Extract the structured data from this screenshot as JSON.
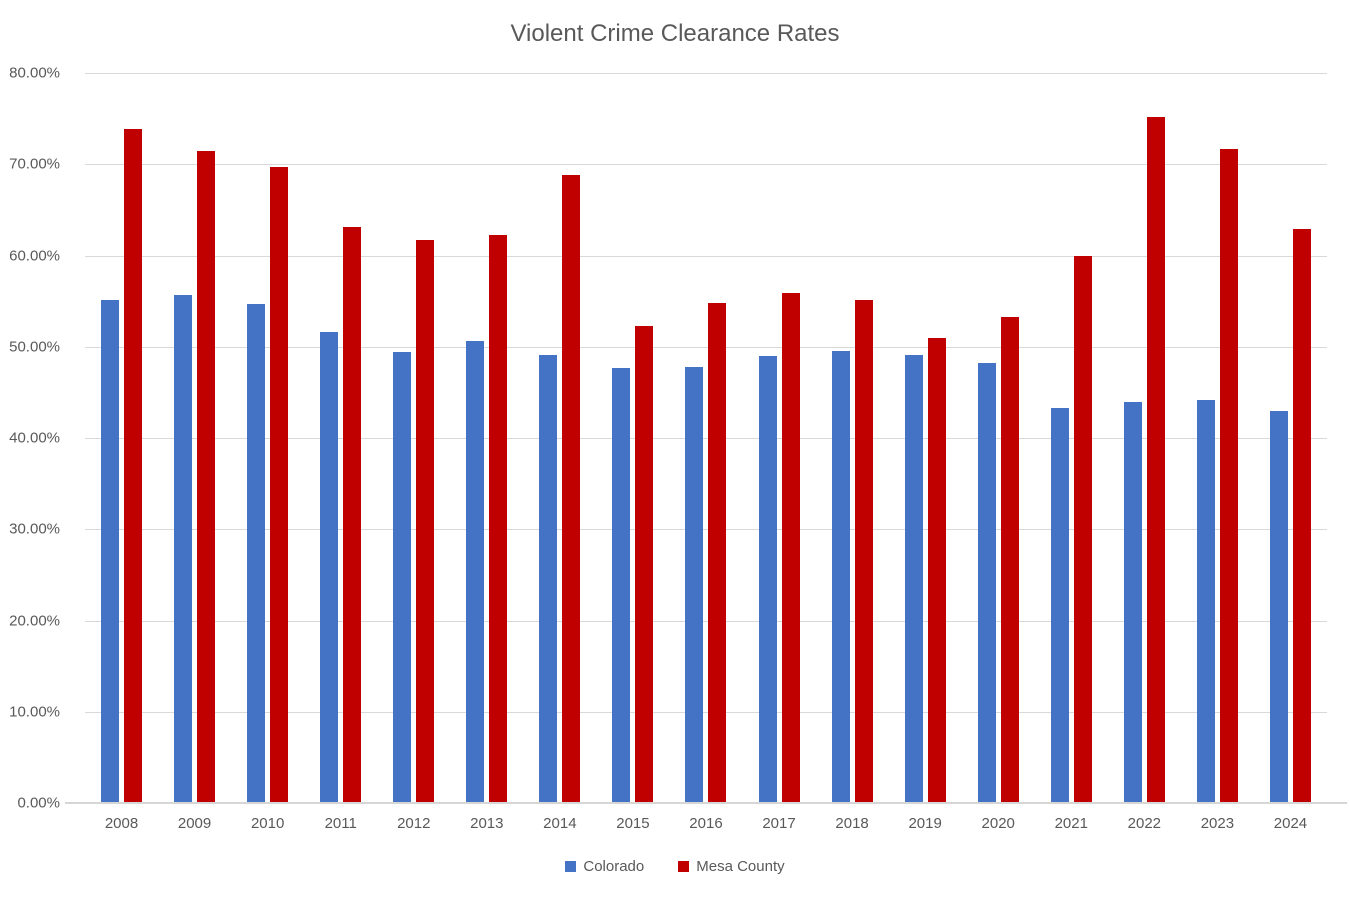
{
  "chart": {
    "title": "Violent Crime Clearance Rates"
  },
  "chart_data": {
    "type": "bar",
    "title": "Violent Crime Clearance Rates",
    "xlabel": "",
    "ylabel": "",
    "categories": [
      "2008",
      "2009",
      "2010",
      "2011",
      "2012",
      "2013",
      "2014",
      "2015",
      "2016",
      "2017",
      "2018",
      "2019",
      "2020",
      "2021",
      "2022",
      "2023",
      "2024"
    ],
    "series": [
      {
        "name": "Colorado",
        "color": "#4472C4",
        "values": [
          55.1,
          55.7,
          54.7,
          51.6,
          49.4,
          50.6,
          49.1,
          47.7,
          47.8,
          49.0,
          49.5,
          49.1,
          48.2,
          43.3,
          44.0,
          44.2,
          43.0
        ]
      },
      {
        "name": "Mesa County",
        "color": "#C00000",
        "values": [
          73.9,
          71.4,
          69.7,
          63.1,
          61.7,
          62.2,
          68.8,
          52.3,
          54.8,
          55.9,
          55.1,
          51.0,
          53.3,
          59.9,
          75.2,
          71.7,
          62.9
        ]
      }
    ],
    "ylim": [
      0,
      80
    ],
    "ytick_step": 10,
    "yticks": [
      "0.00%",
      "10.00%",
      "20.00%",
      "30.00%",
      "40.00%",
      "50.00%",
      "60.00%",
      "70.00%",
      "80.00%"
    ],
    "grid": true,
    "legend_position": "bottom",
    "colors": {
      "title_text": "#595959",
      "axis_text": "#595959",
      "gridline": "#d9d9d9",
      "axis_line": "#d6d6d6",
      "background": "#ffffff"
    }
  }
}
